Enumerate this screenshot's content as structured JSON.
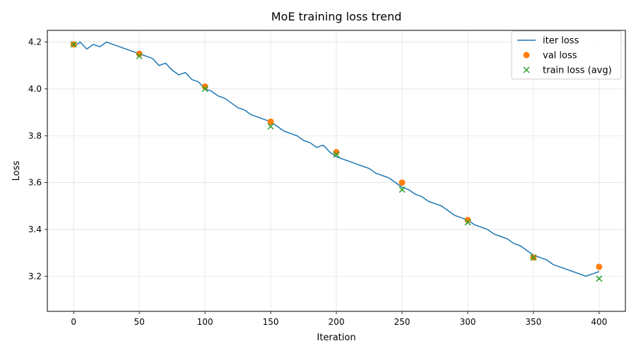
{
  "chart_data": {
    "type": "line",
    "title": "MoE training loss trend",
    "xlabel": "Iteration",
    "ylabel": "Loss",
    "xlim": [
      -20,
      420
    ],
    "ylim": [
      3.05,
      4.25
    ],
    "xticks": [
      0,
      50,
      100,
      150,
      200,
      250,
      300,
      350,
      400
    ],
    "yticks": [
      3.2,
      3.4,
      3.6,
      3.8,
      4.0,
      4.2
    ],
    "grid": true,
    "legend_position": "top-right",
    "series": [
      {
        "name": "iter loss",
        "kind": "line",
        "color": "#1f77b4",
        "x": [
          0,
          5,
          10,
          15,
          20,
          25,
          30,
          35,
          40,
          45,
          50,
          55,
          60,
          65,
          70,
          75,
          80,
          85,
          90,
          95,
          100,
          105,
          110,
          115,
          120,
          125,
          130,
          135,
          140,
          145,
          150,
          155,
          160,
          165,
          170,
          175,
          180,
          185,
          190,
          195,
          200,
          205,
          210,
          215,
          220,
          225,
          230,
          235,
          240,
          245,
          250,
          255,
          260,
          265,
          270,
          275,
          280,
          285,
          290,
          295,
          300,
          305,
          310,
          315,
          320,
          325,
          330,
          335,
          340,
          345,
          350,
          355,
          360,
          365,
          370,
          375,
          380,
          385,
          390,
          395,
          400
        ],
        "y": [
          4.18,
          4.2,
          4.17,
          4.19,
          4.18,
          4.2,
          4.19,
          4.18,
          4.17,
          4.16,
          4.15,
          4.14,
          4.13,
          4.1,
          4.11,
          4.08,
          4.06,
          4.07,
          4.04,
          4.03,
          4.0,
          3.99,
          3.97,
          3.96,
          3.94,
          3.92,
          3.91,
          3.89,
          3.88,
          3.87,
          3.86,
          3.84,
          3.82,
          3.81,
          3.8,
          3.78,
          3.77,
          3.75,
          3.76,
          3.73,
          3.71,
          3.7,
          3.69,
          3.68,
          3.67,
          3.66,
          3.64,
          3.63,
          3.62,
          3.6,
          3.58,
          3.57,
          3.55,
          3.54,
          3.52,
          3.51,
          3.5,
          3.48,
          3.46,
          3.45,
          3.44,
          3.42,
          3.41,
          3.4,
          3.38,
          3.37,
          3.36,
          3.34,
          3.33,
          3.31,
          3.29,
          3.28,
          3.27,
          3.25,
          3.24,
          3.23,
          3.22,
          3.21,
          3.2,
          3.21,
          3.22
        ]
      },
      {
        "name": "val loss",
        "kind": "scatter",
        "marker": "circle",
        "color": "#ff7f0e",
        "x": [
          0,
          50,
          100,
          150,
          200,
          250,
          300,
          350,
          400
        ],
        "y": [
          4.19,
          4.15,
          4.01,
          3.86,
          3.73,
          3.6,
          3.44,
          3.28,
          3.24
        ]
      },
      {
        "name": "train loss (avg)",
        "kind": "scatter",
        "marker": "x",
        "color": "#2ca02c",
        "x": [
          0,
          50,
          100,
          150,
          200,
          250,
          300,
          350,
          400
        ],
        "y": [
          4.19,
          4.14,
          4.0,
          3.84,
          3.72,
          3.57,
          3.43,
          3.28,
          3.19
        ]
      }
    ]
  }
}
